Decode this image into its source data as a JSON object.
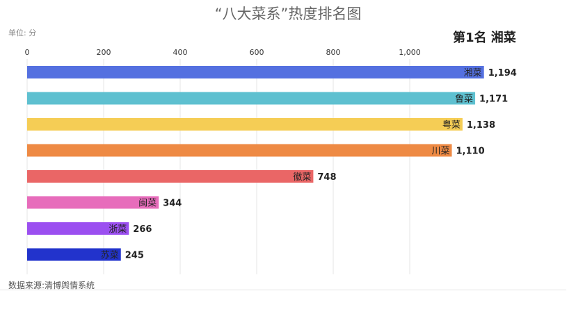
{
  "header": {
    "title": "“八大菜系”热度排名图",
    "unit": "单位: 分",
    "rank_label": "第1名 湘菜"
  },
  "footer": {
    "source": "数据来源:清博舆情系统"
  },
  "chart_data": {
    "type": "bar",
    "orientation": "horizontal",
    "title": "“八大菜系”热度排名图",
    "categories": [
      "湘菜",
      "鲁菜",
      "粤菜",
      "川菜",
      "徽菜",
      "闽菜",
      "浙菜",
      "苏菜"
    ],
    "values": [
      1194,
      1171,
      1138,
      1110,
      748,
      344,
      266,
      245
    ],
    "value_labels": [
      "1,194",
      "1,171",
      "1,138",
      "1,110",
      "748",
      "344",
      "266",
      "245"
    ],
    "colors": [
      "#5470e0",
      "#5ec0d0",
      "#f5cd55",
      "#ee8a44",
      "#ea6666",
      "#e76cbb",
      "#9b4ff0",
      "#2233cc"
    ],
    "x_ticks": [
      0,
      200,
      400,
      600,
      800,
      1000
    ],
    "x_tick_labels": [
      "0",
      "200",
      "400",
      "600",
      "800",
      "1,000"
    ],
    "xlim": [
      0,
      1400
    ],
    "grid": true,
    "axis_position": "top"
  }
}
